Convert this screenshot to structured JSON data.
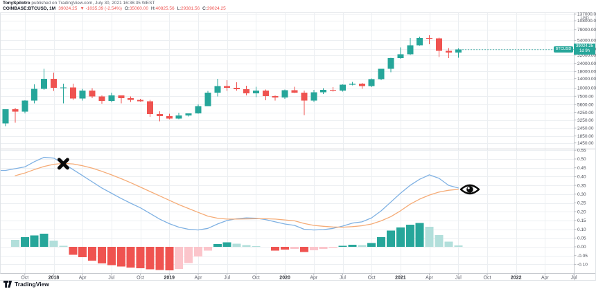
{
  "header": {
    "author": "TonySpilotro",
    "published": " published on TradingView.com, July 30, 2021 16:36:35 WEST",
    "symbol": "COINBASE:BTCUSD, 1M",
    "last_price": "39024.25",
    "change": "▼ -1035.39 (-2.54%)",
    "ohlc": [
      {
        "label": "O:",
        "value": "35060.00"
      },
      {
        "label": "H:",
        "value": "40825.56"
      },
      {
        "label": "L:",
        "value": "29381.56"
      },
      {
        "label": "C:",
        "value": "39024.25"
      }
    ]
  },
  "price_axis": {
    "currency": "USD",
    "symbol_tag": "BTCUSD",
    "badge_price": "39024.25",
    "badge_countdown": "1d 9h",
    "ticks": [
      {
        "label": "137000.00",
        "value": 137000
      },
      {
        "label": "108000.00",
        "value": 108000
      },
      {
        "label": "79000.00",
        "value": 79000
      },
      {
        "label": "54000.00",
        "value": 54000
      },
      {
        "label": "40000.00",
        "value": 40000
      },
      {
        "label": "32000.00",
        "value": 32000
      },
      {
        "label": "24000.00",
        "value": 24000
      },
      {
        "label": "18000.00",
        "value": 18000
      },
      {
        "label": "14000.00",
        "value": 14000
      },
      {
        "label": "10000.00",
        "value": 10000
      },
      {
        "label": "7500.00",
        "value": 7500
      },
      {
        "label": "5600.00",
        "value": 5600
      },
      {
        "label": "4250.00",
        "value": 4250
      },
      {
        "label": "3250.00",
        "value": 3250
      },
      {
        "label": "2450.00",
        "value": 2450
      },
      {
        "label": "1850.00",
        "value": 1850
      },
      {
        "label": "1450.00",
        "value": 1450
      }
    ]
  },
  "macd_axis": {
    "ticks": [
      {
        "label": "0.55",
        "value": 0.55
      },
      {
        "label": "0.50",
        "value": 0.5
      },
      {
        "label": "0.45",
        "value": 0.45
      },
      {
        "label": "0.40",
        "value": 0.4
      },
      {
        "label": "0.35",
        "value": 0.35
      },
      {
        "label": "0.30",
        "value": 0.3
      },
      {
        "label": "0.25",
        "value": 0.25
      },
      {
        "label": "0.20",
        "value": 0.2
      },
      {
        "label": "0.15",
        "value": 0.15
      },
      {
        "label": "0.10",
        "value": 0.1
      },
      {
        "label": "0.05",
        "value": 0.05
      },
      {
        "label": "0.00",
        "value": 0.0
      },
      {
        "label": "-0.05",
        "value": -0.05
      },
      {
        "label": "-0.10",
        "value": -0.1
      }
    ]
  },
  "time_axis": {
    "ticks": [
      {
        "label": "Oct",
        "m": 2
      },
      {
        "label": "2018",
        "m": 5,
        "year": true
      },
      {
        "label": "Apr",
        "m": 8
      },
      {
        "label": "Jul",
        "m": 11
      },
      {
        "label": "Oct",
        "m": 14
      },
      {
        "label": "2019",
        "m": 17,
        "year": true
      },
      {
        "label": "Apr",
        "m": 20
      },
      {
        "label": "Jul",
        "m": 23
      },
      {
        "label": "Oct",
        "m": 26
      },
      {
        "label": "2020",
        "m": 29,
        "year": true
      },
      {
        "label": "Apr",
        "m": 32
      },
      {
        "label": "Jul",
        "m": 35
      },
      {
        "label": "Oct",
        "m": 38
      },
      {
        "label": "2021",
        "m": 41,
        "year": true
      },
      {
        "label": "Apr",
        "m": 44
      },
      {
        "label": "Jul",
        "m": 47
      },
      {
        "label": "Oct",
        "m": 50
      },
      {
        "label": "2022",
        "m": 53,
        "year": true
      },
      {
        "label": "Apr",
        "m": 56
      },
      {
        "label": "Jul",
        "m": 59
      }
    ]
  },
  "footer": {
    "logo_text": "TradingView"
  },
  "colors": {
    "up": "#26a69a",
    "down": "#ef5350",
    "hist_pos": "#26a69a",
    "hist_pos_light": "#b2dfdb",
    "hist_neg": "#ef5350",
    "hist_neg_light": "#fbc5cb",
    "macd_line": "#7fb1e3",
    "signal_line": "#f5ab76",
    "grid": "#eceff2",
    "frame": "#e0e3e7",
    "divider": "#c6c9ce",
    "tick": "#b7bac0",
    "axis_text": "#4b4e57",
    "time_text": "#5d606b",
    "year_text": "#33363d",
    "badge": "#26a69a",
    "marker": "#0a0a0a"
  },
  "chart_data": {
    "type": "candlestick",
    "symbol": "COINBASE:BTCUSD",
    "timeframe": "1M",
    "price_scale": "log",
    "panes": [
      "price-candles",
      "macd-oscillator"
    ],
    "months": [
      "Aug 2017",
      "Sep 2017",
      "Oct 2017",
      "Nov 2017",
      "Dec 2017",
      "Jan 2018",
      "Feb 2018",
      "Mar 2018",
      "Apr 2018",
      "May 2018",
      "Jun 2018",
      "Jul 2018",
      "Aug 2018",
      "Sep 2018",
      "Oct 2018",
      "Nov 2018",
      "Dec 2018",
      "Jan 2019",
      "Feb 2019",
      "Mar 2019",
      "Apr 2019",
      "May 2019",
      "Jun 2019",
      "Jul 2019",
      "Aug 2019",
      "Sep 2019",
      "Oct 2019",
      "Nov 2019",
      "Dec 2019",
      "Jan 2020",
      "Feb 2020",
      "Mar 2020",
      "Apr 2020",
      "May 2020",
      "Jun 2020",
      "Jul 2020",
      "Aug 2020",
      "Sep 2020",
      "Oct 2020",
      "Nov 2020",
      "Dec 2020",
      "Jan 2021",
      "Feb 2021",
      "Mar 2021",
      "Apr 2021",
      "May 2021",
      "Jun 2021",
      "Jul 2021"
    ],
    "candles": [
      [
        2871,
        4764,
        2605,
        4735
      ],
      [
        4735,
        4975,
        2972,
        4360
      ],
      [
        4360,
        6498,
        4110,
        6440
      ],
      [
        6440,
        11441,
        5844,
        9800
      ],
      [
        9800,
        19891,
        9380,
        13850
      ],
      [
        13850,
        17234,
        9035,
        10100
      ],
      [
        10100,
        11786,
        5873,
        10309
      ],
      [
        10309,
        11670,
        6600,
        6926
      ],
      [
        6926,
        9767,
        6425,
        9240
      ],
      [
        9240,
        9990,
        7032,
        7485
      ],
      [
        7485,
        7786,
        5780,
        6390
      ],
      [
        6390,
        8507,
        6070,
        7729
      ],
      [
        7729,
        7760,
        5880,
        7014
      ],
      [
        7014,
        7429,
        6111,
        6625
      ],
      [
        6625,
        6830,
        6205,
        6303
      ],
      [
        6303,
        6615,
        3652,
        4017
      ],
      [
        4017,
        4410,
        3122,
        3742
      ],
      [
        3742,
        4069,
        3349,
        3434
      ],
      [
        3434,
        4199,
        3330,
        3813
      ],
      [
        3813,
        4129,
        3661,
        4092
      ],
      [
        4092,
        5627,
        4052,
        5320
      ],
      [
        5320,
        9074,
        5316,
        8555
      ],
      [
        8555,
        13880,
        7432,
        10817
      ],
      [
        10817,
        13185,
        9049,
        10080
      ],
      [
        10080,
        12325,
        9230,
        9630
      ],
      [
        9630,
        10949,
        7714,
        8310
      ],
      [
        8310,
        10540,
        7293,
        9199
      ],
      [
        9199,
        9505,
        6515,
        7569
      ],
      [
        7569,
        7743,
        6430,
        7193
      ],
      [
        7193,
        9550,
        6853,
        9350
      ],
      [
        9350,
        10500,
        8450,
        8543
      ],
      [
        8543,
        9170,
        3850,
        6438
      ],
      [
        6438,
        9460,
        6150,
        8630
      ],
      [
        8630,
        10067,
        8101,
        9461
      ],
      [
        9461,
        10380,
        8830,
        9137
      ],
      [
        9137,
        11450,
        8900,
        11355
      ],
      [
        11355,
        12480,
        11000,
        11657
      ],
      [
        11657,
        12050,
        9825,
        10778
      ],
      [
        10778,
        14100,
        10374,
        13800
      ],
      [
        13800,
        19863,
        13200,
        19698
      ],
      [
        19698,
        29300,
        17572,
        28990
      ],
      [
        28990,
        41980,
        28130,
        33110
      ],
      [
        33110,
        58367,
        32296,
        45164
      ],
      [
        45164,
        61844,
        44963,
        58763
      ],
      [
        58763,
        64899,
        46930,
        57720
      ],
      [
        57720,
        59592,
        30000,
        37298
      ],
      [
        37298,
        41330,
        28800,
        35045
      ],
      [
        35060,
        40825.56,
        29381.56,
        39024.25
      ]
    ],
    "macd": {
      "line": [
        0.435,
        0.445,
        0.455,
        0.485,
        0.51,
        0.505,
        0.475,
        0.44,
        0.405,
        0.37,
        0.335,
        0.305,
        0.275,
        0.248,
        0.222,
        0.19,
        0.158,
        0.132,
        0.112,
        0.1,
        0.096,
        0.105,
        0.13,
        0.15,
        0.16,
        0.165,
        0.163,
        0.155,
        0.142,
        0.13,
        0.122,
        0.1,
        0.096,
        0.098,
        0.105,
        0.118,
        0.135,
        0.142,
        0.165,
        0.205,
        0.255,
        0.305,
        0.35,
        0.385,
        0.41,
        0.39,
        0.35,
        0.335
      ],
      "signal": [
        null,
        0.405,
        0.42,
        0.44,
        0.458,
        0.47,
        0.475,
        0.472,
        0.462,
        0.448,
        0.43,
        0.41,
        0.388,
        0.365,
        0.34,
        0.315,
        0.29,
        0.265,
        0.24,
        0.218,
        0.196,
        0.175,
        0.163,
        0.158,
        0.158,
        0.159,
        0.16,
        0.16,
        0.158,
        0.153,
        0.148,
        0.133,
        0.122,
        0.117,
        0.113,
        0.112,
        0.115,
        0.12,
        0.13,
        0.148,
        0.172,
        0.205,
        0.243,
        0.272,
        0.295,
        0.312,
        0.322,
        0.327
      ],
      "histogram": [
        null,
        {
          "v": 0.04,
          "light": true
        },
        {
          "v": 0.055
        },
        {
          "v": 0.065
        },
        {
          "v": 0.075
        },
        {
          "v": 0.035,
          "light": true
        },
        {
          "v": 0.006,
          "light": true
        },
        {
          "v": -0.045
        },
        {
          "v": -0.06
        },
        {
          "v": -0.078
        },
        {
          "v": -0.095
        },
        {
          "v": -0.105
        },
        {
          "v": -0.112
        },
        {
          "v": -0.118
        },
        {
          "v": -0.122
        },
        {
          "v": -0.127
        },
        {
          "v": -0.132
        },
        {
          "v": -0.134
        },
        {
          "v": -0.126,
          "light": true
        },
        {
          "v": -0.092,
          "light": true
        },
        {
          "v": -0.056,
          "light": true
        },
        {
          "v": -0.022,
          "light": true
        },
        {
          "v": 0.016
        },
        {
          "v": 0.026
        },
        {
          "v": 0.018,
          "light": true
        },
        {
          "v": 0.009,
          "light": true
        },
        {
          "v": 0.004,
          "light": true
        },
        null,
        {
          "v": -0.021
        },
        {
          "v": -0.016
        },
        {
          "v": -0.011,
          "light": true
        },
        {
          "v": -0.03
        },
        {
          "v": -0.02,
          "light": true
        },
        {
          "v": -0.012,
          "light": true
        },
        {
          "v": -0.005,
          "light": true
        },
        {
          "v": 0.006
        },
        {
          "v": 0.012
        },
        {
          "v": 0.009,
          "light": true
        },
        {
          "v": 0.021
        },
        {
          "v": 0.055
        },
        {
          "v": 0.093
        },
        {
          "v": 0.11
        },
        {
          "v": 0.126
        },
        {
          "v": 0.136
        },
        {
          "v": 0.114,
          "light": true
        },
        {
          "v": 0.066,
          "light": true
        },
        {
          "v": 0.03,
          "light": true
        },
        {
          "v": 0.008,
          "light": true
        }
      ]
    },
    "markers": [
      {
        "type": "x-cross",
        "month_index": 6,
        "value": 0.473
      },
      {
        "type": "eye",
        "month_index": 48.2,
        "value": 0.327
      }
    ]
  }
}
